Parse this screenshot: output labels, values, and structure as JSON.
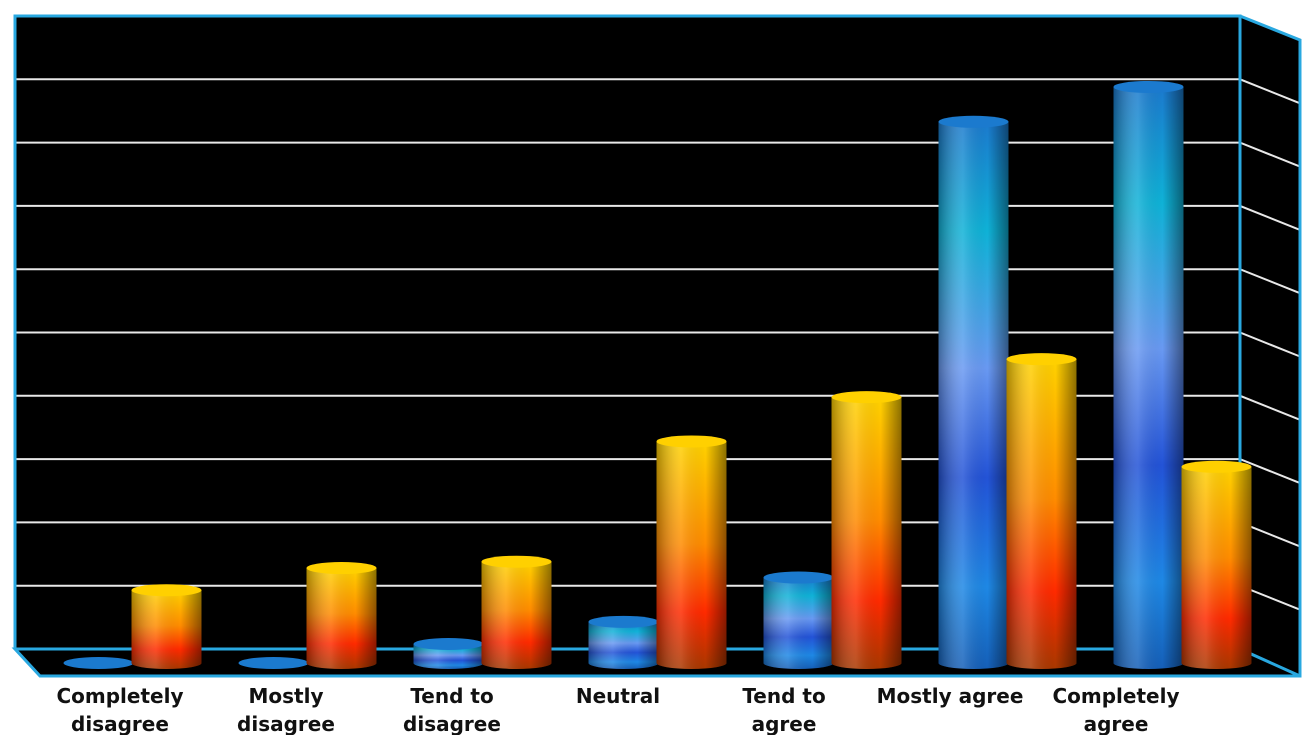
{
  "chart_data": {
    "type": "bar",
    "categories": [
      "Completely disagree",
      "Mostly disagree",
      "Tend to disagree",
      "Neutral",
      "Tend to agree",
      "Mostly agree",
      "Completely agree"
    ],
    "series": [
      {
        "color": "#1e88e5",
        "values": [
          0,
          0,
          0.3,
          0.65,
          1.35,
          8.55,
          9.1
        ]
      },
      {
        "color": "#ff8c00",
        "values": [
          1.15,
          1.5,
          1.6,
          3.5,
          4.2,
          4.8,
          3.1
        ]
      }
    ],
    "ylim": [
      0,
      10
    ],
    "yticks": [
      0,
      1,
      2,
      3,
      4,
      5,
      6,
      7,
      8,
      9,
      10
    ],
    "grid": true
  }
}
